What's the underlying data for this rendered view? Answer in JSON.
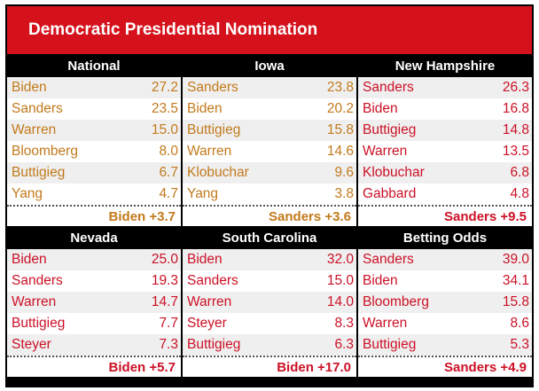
{
  "header": {
    "title": "Democratic Presidential Nomination"
  },
  "panels": [
    {
      "title": "National",
      "color": "#c27a1c",
      "rows": [
        [
          "Biden",
          "27.2"
        ],
        [
          "Sanders",
          "23.5"
        ],
        [
          "Warren",
          "15.0"
        ],
        [
          "Bloomberg",
          "8.0"
        ],
        [
          "Buttigieg",
          "6.7"
        ],
        [
          "Yang",
          "4.7"
        ]
      ],
      "leader": "Biden +3.7"
    },
    {
      "title": "Iowa",
      "color": "#c27a1c",
      "rows": [
        [
          "Sanders",
          "23.8"
        ],
        [
          "Biden",
          "20.2"
        ],
        [
          "Buttigieg",
          "15.8"
        ],
        [
          "Warren",
          "14.6"
        ],
        [
          "Klobuchar",
          "9.6"
        ],
        [
          "Yang",
          "3.8"
        ]
      ],
      "leader": "Sanders +3.6"
    },
    {
      "title": "New Hampshire",
      "color": "#cc1126",
      "rows": [
        [
          "Sanders",
          "26.3"
        ],
        [
          "Biden",
          "16.8"
        ],
        [
          "Buttigieg",
          "14.8"
        ],
        [
          "Warren",
          "13.5"
        ],
        [
          "Klobuchar",
          "6.8"
        ],
        [
          "Gabbard",
          "4.8"
        ]
      ],
      "leader": "Sanders +9.5"
    },
    {
      "title": "Nevada",
      "color": "#cc1126",
      "rows": [
        [
          "Biden",
          "25.0"
        ],
        [
          "Sanders",
          "19.3"
        ],
        [
          "Warren",
          "14.7"
        ],
        [
          "Buttigieg",
          "7.7"
        ],
        [
          "Steyer",
          "7.3"
        ]
      ],
      "leader": "Biden +5.7"
    },
    {
      "title": "South Carolina",
      "color": "#cc1126",
      "rows": [
        [
          "Biden",
          "32.0"
        ],
        [
          "Sanders",
          "15.0"
        ],
        [
          "Warren",
          "14.0"
        ],
        [
          "Steyer",
          "8.3"
        ],
        [
          "Buttigieg",
          "6.3"
        ]
      ],
      "leader": "Biden +17.0"
    },
    {
      "title": "Betting Odds",
      "color": "#cc1126",
      "rows": [
        [
          "Sanders",
          "39.0"
        ],
        [
          "Biden",
          "34.1"
        ],
        [
          "Bloomberg",
          "15.8"
        ],
        [
          "Warren",
          "8.6"
        ],
        [
          "Buttigieg",
          "5.3"
        ]
      ],
      "leader": "Sanders +4.9"
    }
  ]
}
